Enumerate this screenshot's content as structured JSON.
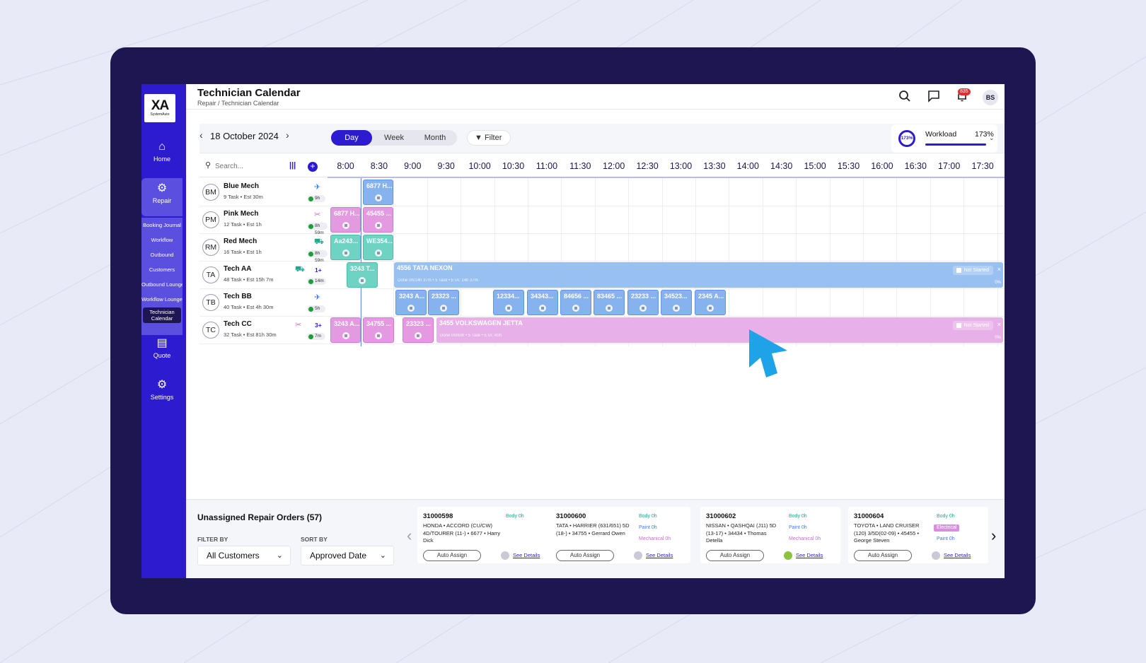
{
  "app": {
    "title": "Technician Calendar",
    "breadcrumb": "Repair / Technician Calendar",
    "logo_mark": "XA",
    "logo_sub": "SystemAuto"
  },
  "header": {
    "notification_count": "835",
    "user_initials": "BS"
  },
  "sidebar": {
    "home": "Home",
    "repair": "Repair",
    "sub_items": [
      "Booking Journal",
      "Workflow",
      "Outbound",
      "Customers",
      "Outbound Lounge",
      "Workflow Lounge"
    ],
    "active_sub_line1": "Technician",
    "active_sub_line2": "Calendar",
    "quote": "Quote",
    "settings": "Settings"
  },
  "toolbar": {
    "date": "18 October 2024",
    "views": [
      "Day",
      "Week",
      "Month"
    ],
    "active_view": "Day",
    "filter_label": "Filter",
    "workload_label": "Workload",
    "workload_value": "173%",
    "workload_ring": "173%"
  },
  "grid": {
    "search_placeholder": "Search...",
    "times": [
      "8:00",
      "8:30",
      "9:00",
      "9:30",
      "10:00",
      "10:30",
      "11:00",
      "11:30",
      "12:00",
      "12:30",
      "13:00",
      "13:30",
      "14:00",
      "14:30",
      "15:00",
      "15:30",
      "16:00",
      "16:30",
      "17:00",
      "17:30"
    ],
    "technicians": [
      {
        "initials": "BM",
        "name": "Blue Mech",
        "meta": "9 Task • Est 30m",
        "icon": "plane-icon",
        "count": "",
        "time": "9h"
      },
      {
        "initials": "PM",
        "name": "Pink Mech",
        "meta": "12 Task • Est 1h",
        "icon": "tools-icon",
        "count": "",
        "time": "8h 59m"
      },
      {
        "initials": "RM",
        "name": "Red Mech",
        "meta": "16 Task • Est 1h",
        "icon": "car-icon",
        "count": "",
        "time": "8h 59m"
      },
      {
        "initials": "TA",
        "name": "Tech AA",
        "meta": "48 Task • Est 15h 7m",
        "icon": "car-icon",
        "count": "1+",
        "time": "14m"
      },
      {
        "initials": "TB",
        "name": "Tech BB",
        "meta": "40 Task • Est 4h 30m",
        "icon": "plane-icon",
        "count": "",
        "time": "5h"
      },
      {
        "initials": "TC",
        "name": "Tech CC",
        "meta": "32 Task • Est 81h 30m",
        "icon": "tools-icon",
        "count": "3+",
        "time": "7m"
      }
    ],
    "blocks": {
      "bm": [
        "6877 H..."
      ],
      "pm": [
        "6877 H...",
        "45455 ..."
      ],
      "rm": [
        "Aa243...",
        "WE354..."
      ],
      "ta_small": "3243 T...",
      "ta_wide_title": "4556 TATA NEXON",
      "ta_wide_sub": "Done 0h/14h 37m • 5 Task • ETA: 14h 37m",
      "tb": [
        "3243 A...",
        "23323 ...",
        "12334...",
        "34343...",
        "84656 ...",
        "83465 ...",
        "23233 ...",
        "34523...",
        "2345 A..."
      ],
      "tc": [
        "3243 A...",
        "34755 ...",
        "23323 ..."
      ],
      "tc_wide_title": "3455 VOLKSWAGEN JETTA",
      "tc_wide_sub": "Done 0h/60h • 5 Task • ETA: 60h",
      "status_label": "Not Started",
      "status_x": "×",
      "status_pct": "0%"
    }
  },
  "unassigned": {
    "title": "Unassigned Repair Orders (57)",
    "filter_label": "FILTER BY",
    "filter_value": "All Customers",
    "sort_label": "SORT BY",
    "sort_value": "Approved Date",
    "assign_label": "Auto Assign",
    "details_label": "See Details",
    "cards": [
      {
        "id": "31000598",
        "desc": "HONDA • ACCORD (CU/CW) 4D/TOURER (11-) • 6677 • Harry Dick",
        "tags": [
          "Body 0h"
        ]
      },
      {
        "id": "31000600",
        "desc": "TATA • HARRIER (631/651) 5D (18-) • 34755 • Gerrard Owen",
        "tags": [
          "Body 0h",
          "Paint 0h",
          "Mechanical 0h"
        ]
      },
      {
        "id": "31000602",
        "desc": "NISSAN • QASHQAI (J11) 5D (13-17) • 34434 • Thomas Detella",
        "tags": [
          "Body 0h",
          "Paint 0h",
          "Mechanical 0h"
        ]
      },
      {
        "id": "31000604",
        "desc": "TOYOTA • LAND CRUISER (120) 3/5D(02-09) • 45455 • George Steven",
        "tags": [
          "Body 0h",
          "Electrical",
          "Paint 0h"
        ]
      }
    ]
  },
  "colors": {
    "primary": "#2d1bd0",
    "frame": "#1d1650",
    "block_blue": "#86b3ee",
    "block_pink": "#e39ae0",
    "block_teal": "#6fd3c3",
    "cursor": "#1fa3e8"
  }
}
